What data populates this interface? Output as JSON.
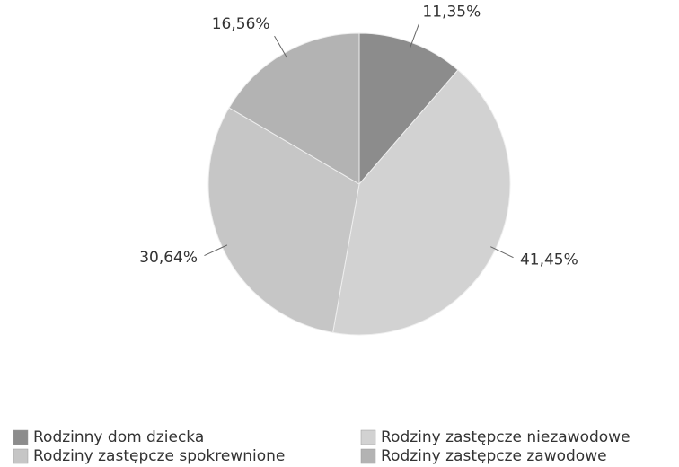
{
  "chart_data": {
    "type": "pie",
    "categories": [
      "Rodzinny dom dziecka",
      "Rodziny zastępcze niezawodowe",
      "Rodziny zastępcze spokrewnione",
      "Rodziny zastępcze zawodowe"
    ],
    "values": [
      11.35,
      41.45,
      30.64,
      16.56
    ],
    "value_labels": [
      "11,35%",
      "41,45%",
      "30,64%",
      "16,56%"
    ],
    "colors": [
      "#8c8c8c",
      "#d2d2d2",
      "#c6c6c6",
      "#b3b3b3"
    ],
    "legend": "bottom"
  }
}
